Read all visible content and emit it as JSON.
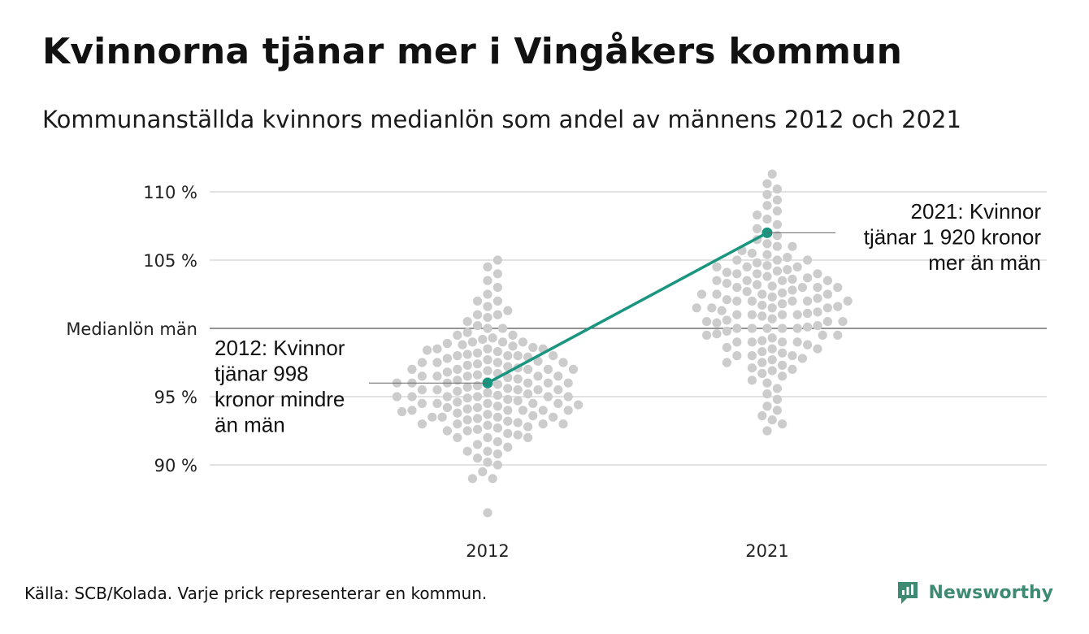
{
  "header": {
    "title": "Kvinnorna tjänar mer i Vingåkers kommun",
    "subtitle": "Kommunanställda kvinnors medianlön som andel av männens 2012 och 2021"
  },
  "footer": {
    "source": "Källa: SCB/Kolada. Varje prick representerar en kommun.",
    "brand": "Newsworthy"
  },
  "colors": {
    "highlight": "#1a9580",
    "dots": "#cccccc",
    "grid": "#e2e2e2",
    "reference_line": "#555555",
    "brand": "#3f8a72"
  },
  "chart_data": {
    "type": "scatter",
    "subtype": "beeswarm",
    "categories": [
      "2012",
      "2021"
    ],
    "y_unit": "%",
    "ylim": [
      86,
      112
    ],
    "y_ticks": [
      {
        "value": 90,
        "label": "90 %"
      },
      {
        "value": 95,
        "label": "95 %"
      },
      {
        "value": 105,
        "label": "105 %"
      },
      {
        "value": 110,
        "label": "110 %"
      }
    ],
    "reference_line": {
      "value": 100,
      "label": "Medianlön män"
    },
    "grid": true,
    "highlight": {
      "values": [
        96,
        107
      ],
      "annotations": [
        {
          "category": "2012",
          "lines": [
            "2012: Kvinnor",
            "tjänar 998",
            "kronor mindre",
            "än män"
          ]
        },
        {
          "category": "2021",
          "lines": [
            "2021: Kvinnor",
            "tjänar 1 920 kronor",
            "mer än män"
          ]
        }
      ]
    },
    "swarm_2012": [
      86.5,
      89,
      89,
      89.5,
      90,
      90.2,
      90.5,
      90.8,
      91,
      91,
      91.3,
      91.5,
      91.7,
      92,
      92,
      92,
      92.2,
      92.3,
      92.5,
      92.5,
      92.6,
      92.7,
      92.8,
      92.9,
      93,
      93,
      93,
      93,
      93.1,
      93.2,
      93.3,
      93.4,
      93.5,
      93.5,
      93.5,
      93.5,
      93.6,
      93.7,
      93.8,
      93.9,
      94,
      94,
      94,
      94,
      94,
      94.1,
      94.2,
      94.2,
      94.3,
      94.4,
      94.5,
      94.5,
      94.5,
      94.5,
      94.5,
      94.6,
      94.7,
      94.8,
      94.9,
      95,
      95,
      95,
      95,
      95,
      95,
      95.1,
      95.2,
      95.3,
      95.4,
      95.5,
      95.5,
      95.5,
      95.5,
      95.5,
      95.6,
      95.7,
      95.8,
      95.9,
      96,
      96,
      96,
      96,
      96,
      96,
      96.1,
      96.2,
      96.3,
      96.4,
      96.5,
      96.5,
      96.5,
      96.5,
      96.5,
      96.6,
      96.7,
      96.8,
      96.9,
      97,
      97,
      97,
      97,
      97,
      97.1,
      97.2,
      97.3,
      97.4,
      97.5,
      97.5,
      97.5,
      97.5,
      97.6,
      97.7,
      97.8,
      97.9,
      98,
      98,
      98,
      98,
      98.1,
      98.2,
      98.3,
      98.4,
      98.5,
      98.5,
      98.5,
      98.6,
      98.7,
      98.8,
      98.9,
      99,
      99,
      99,
      99.2,
      99.3,
      99.5,
      99.5,
      99.7,
      100,
      100,
      100.2,
      100.5,
      100.8,
      101,
      101,
      101.3,
      101.6,
      102,
      102,
      102.5,
      103,
      103.5,
      104,
      104.5,
      105
    ],
    "swarm_2021": [
      92.5,
      93,
      93.3,
      93.6,
      94,
      94.3,
      94.8,
      95.2,
      95.6,
      96,
      96.2,
      96.5,
      96.7,
      96.9,
      97,
      97.1,
      97.3,
      97.5,
      97.5,
      97.7,
      97.8,
      98,
      98,
      98,
      98.2,
      98.3,
      98.5,
      98.5,
      98.6,
      98.8,
      99,
      99,
      99,
      99,
      99.1,
      99.3,
      99.5,
      99.5,
      99.5,
      99.6,
      99.8,
      100,
      100,
      100,
      100,
      100,
      100.1,
      100.2,
      100.4,
      100.5,
      100.5,
      100.5,
      100.6,
      100.7,
      100.9,
      101,
      101,
      101,
      101,
      101.1,
      101.2,
      101.3,
      101.5,
      101.5,
      101.5,
      101.5,
      101.6,
      101.7,
      101.8,
      102,
      102,
      102,
      102,
      102,
      102.1,
      102.2,
      102.3,
      102.5,
      102.5,
      102.5,
      102.5,
      102.6,
      102.7,
      102.8,
      103,
      103,
      103,
      103,
      103.1,
      103.2,
      103.3,
      103.5,
      103.5,
      103.5,
      103.5,
      103.6,
      103.7,
      103.8,
      104,
      104,
      104,
      104.1,
      104.2,
      104.3,
      104.5,
      104.5,
      104.5,
      104.6,
      104.8,
      105,
      105,
      105,
      105.2,
      105.4,
      105.5,
      105.7,
      106,
      106,
      106.2,
      106.5,
      106.8,
      107,
      107.3,
      107.6,
      108,
      108.3,
      108.6,
      109,
      109.4,
      109.8,
      110.2,
      110.6,
      111.3
    ]
  }
}
